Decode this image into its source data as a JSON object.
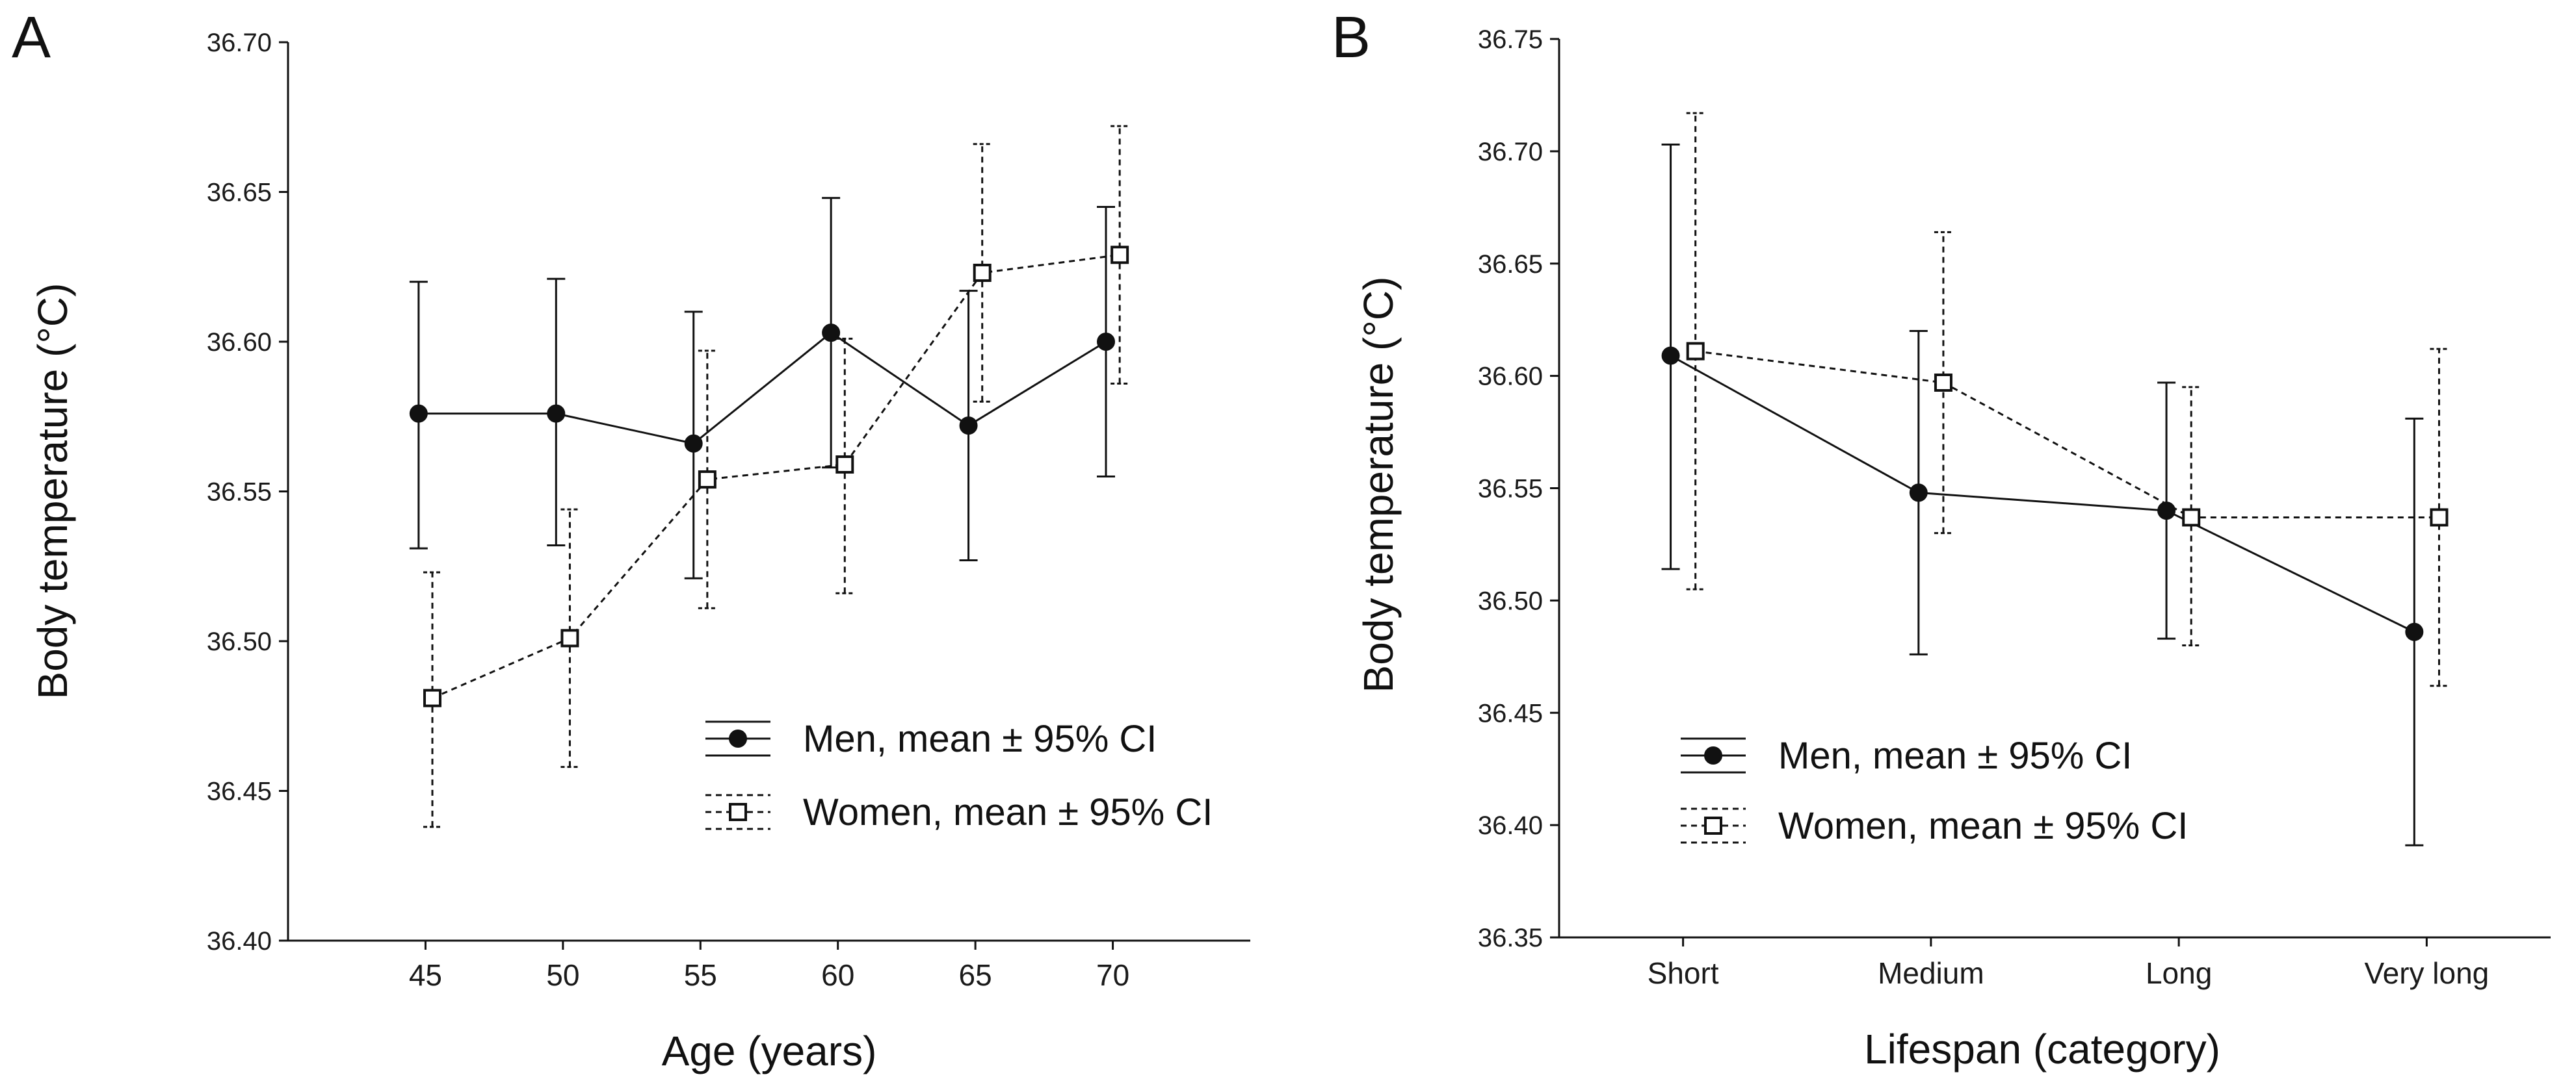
{
  "colors": {
    "ink": "#111111",
    "background": "#ffffff",
    "men_marker": "#111111",
    "women_marker": "#ffffff"
  },
  "chart_data": [
    {
      "panel": "A",
      "type": "line",
      "xlabel": "Age (years)",
      "ylabel": "Body temperature (°C)",
      "x": [
        45,
        50,
        55,
        60,
        65,
        70
      ],
      "xlim": [
        40,
        75
      ],
      "ylim": [
        36.4,
        36.7
      ],
      "yticks": [
        "36.40",
        "36.45",
        "36.50",
        "36.55",
        "36.60",
        "36.65",
        "36.70"
      ],
      "ytick_values": [
        36.4,
        36.45,
        36.5,
        36.55,
        36.6,
        36.65,
        36.7
      ],
      "grid": false,
      "legend_position": "bottom-right",
      "series": [
        {
          "name": "Men, mean ± 95% CI",
          "marker": "filled-circle",
          "line": "solid",
          "x_offset": -0.25,
          "values": [
            36.576,
            36.576,
            36.566,
            36.603,
            36.572,
            36.6
          ],
          "ci_low": [
            36.531,
            36.532,
            36.521,
            36.558,
            36.527,
            36.555
          ],
          "ci_high": [
            36.62,
            36.621,
            36.61,
            36.648,
            36.617,
            36.645
          ]
        },
        {
          "name": "Women, mean ± 95% CI",
          "marker": "open-square",
          "line": "dashed",
          "x_offset": 0.25,
          "values": [
            36.481,
            36.501,
            36.554,
            36.559,
            36.623,
            36.629
          ],
          "ci_low": [
            36.438,
            36.458,
            36.511,
            36.516,
            36.58,
            36.586
          ],
          "ci_high": [
            36.523,
            36.544,
            36.597,
            36.601,
            36.666,
            36.672
          ]
        }
      ]
    },
    {
      "panel": "B",
      "type": "line",
      "xlabel": "Lifespan (category)",
      "ylabel": "Body temperature (°C)",
      "categories": [
        "Short",
        "Medium",
        "Long",
        "Very long"
      ],
      "xlim": [
        -0.5,
        3.5
      ],
      "ylim": [
        36.35,
        36.75
      ],
      "yticks": [
        "36.35",
        "36.40",
        "36.45",
        "36.50",
        "36.55",
        "36.60",
        "36.65",
        "36.70",
        "36.75"
      ],
      "ytick_values": [
        36.35,
        36.4,
        36.45,
        36.5,
        36.55,
        36.6,
        36.65,
        36.7,
        36.75
      ],
      "grid": false,
      "legend_position": "bottom-left",
      "series": [
        {
          "name": "Men, mean ± 95% CI",
          "marker": "filled-circle",
          "line": "solid",
          "x_offset": -0.05,
          "values": [
            36.609,
            36.548,
            36.54,
            36.486
          ],
          "ci_low": [
            36.514,
            36.476,
            36.483,
            36.391
          ],
          "ci_high": [
            36.703,
            36.62,
            36.597,
            36.581
          ]
        },
        {
          "name": "Women, mean ± 95% CI",
          "marker": "open-square",
          "line": "dashed",
          "x_offset": 0.05,
          "values": [
            36.611,
            36.597,
            36.537,
            36.537
          ],
          "ci_low": [
            36.505,
            36.53,
            36.48,
            36.462
          ],
          "ci_high": [
            36.717,
            36.664,
            36.595,
            36.612
          ]
        }
      ]
    }
  ]
}
